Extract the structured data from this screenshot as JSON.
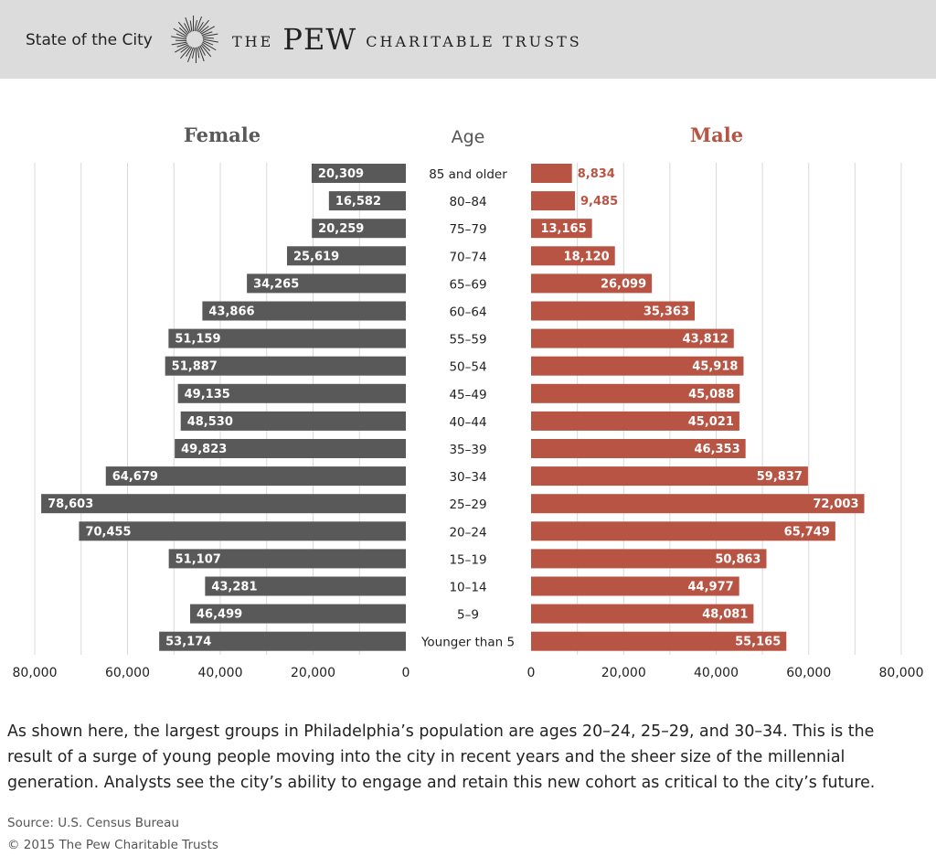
{
  "header": {
    "series_title": "State of the City",
    "brand_the": "THE",
    "brand_pew": "PEW",
    "brand_rest": "CHARITABLE TRUSTS"
  },
  "colors": {
    "female": "#595959",
    "male": "#b85444",
    "grid": "#d9d9d9",
    "header_bg": "#dcdcdc"
  },
  "chart_data": {
    "type": "bar",
    "orientation": "horizontal-butterfly",
    "left_title": "Female",
    "center_title": "Age",
    "right_title": "Male",
    "categories": [
      "85 and older",
      "80–84",
      "75–79",
      "70–74",
      "65–69",
      "60–64",
      "55–59",
      "50–54",
      "45–49",
      "40–44",
      "35–39",
      "30–34",
      "25–29",
      "20–24",
      "15–19",
      "10–14",
      "5–9",
      "Younger than 5"
    ],
    "series": [
      {
        "name": "Female",
        "values": [
          20309,
          16582,
          20259,
          25619,
          34265,
          43866,
          51159,
          51887,
          49135,
          48530,
          49823,
          64679,
          78603,
          70455,
          51107,
          43281,
          46499,
          53174
        ],
        "labels": [
          "20,309",
          "16,582",
          "20,259",
          "25,619",
          "34,265",
          "43,866",
          "51,159",
          "51,887",
          "49,135",
          "48,530",
          "49,823",
          "64,679",
          "78,603",
          "70,455",
          "51,107",
          "43,281",
          "46,499",
          "53,174"
        ]
      },
      {
        "name": "Male",
        "values": [
          8834,
          9485,
          13165,
          18120,
          26099,
          35363,
          43812,
          45918,
          45088,
          45021,
          46353,
          59837,
          72003,
          65749,
          50863,
          44977,
          48081,
          55165
        ],
        "labels": [
          "8,834",
          "9,485",
          "13,165",
          "18,120",
          "26,099",
          "35,363",
          "43,812",
          "45,918",
          "45,088",
          "45,021",
          "46,353",
          "59,837",
          "72,003",
          "65,749",
          "50,863",
          "44,977",
          "48,081",
          "55,165"
        ]
      }
    ],
    "xlim": [
      0,
      80000
    ],
    "ticks": [
      0,
      20000,
      40000,
      60000,
      80000
    ],
    "tick_labels": [
      "0",
      "20,000",
      "40,000",
      "60,000",
      "80,000"
    ],
    "grid": true
  },
  "description": "As shown here, the largest groups in Philadelphia’s population are ages 20–24, 25–29, and 30–34. This is the result of a surge of young people moving into the city in recent years and the sheer size of the millennial generation. Analysts see the city’s ability to engage and retain this new cohort as critical to the city’s future.",
  "source": "Source: U.S. Census Bureau",
  "copyright": "© 2015 The Pew Charitable Trusts"
}
